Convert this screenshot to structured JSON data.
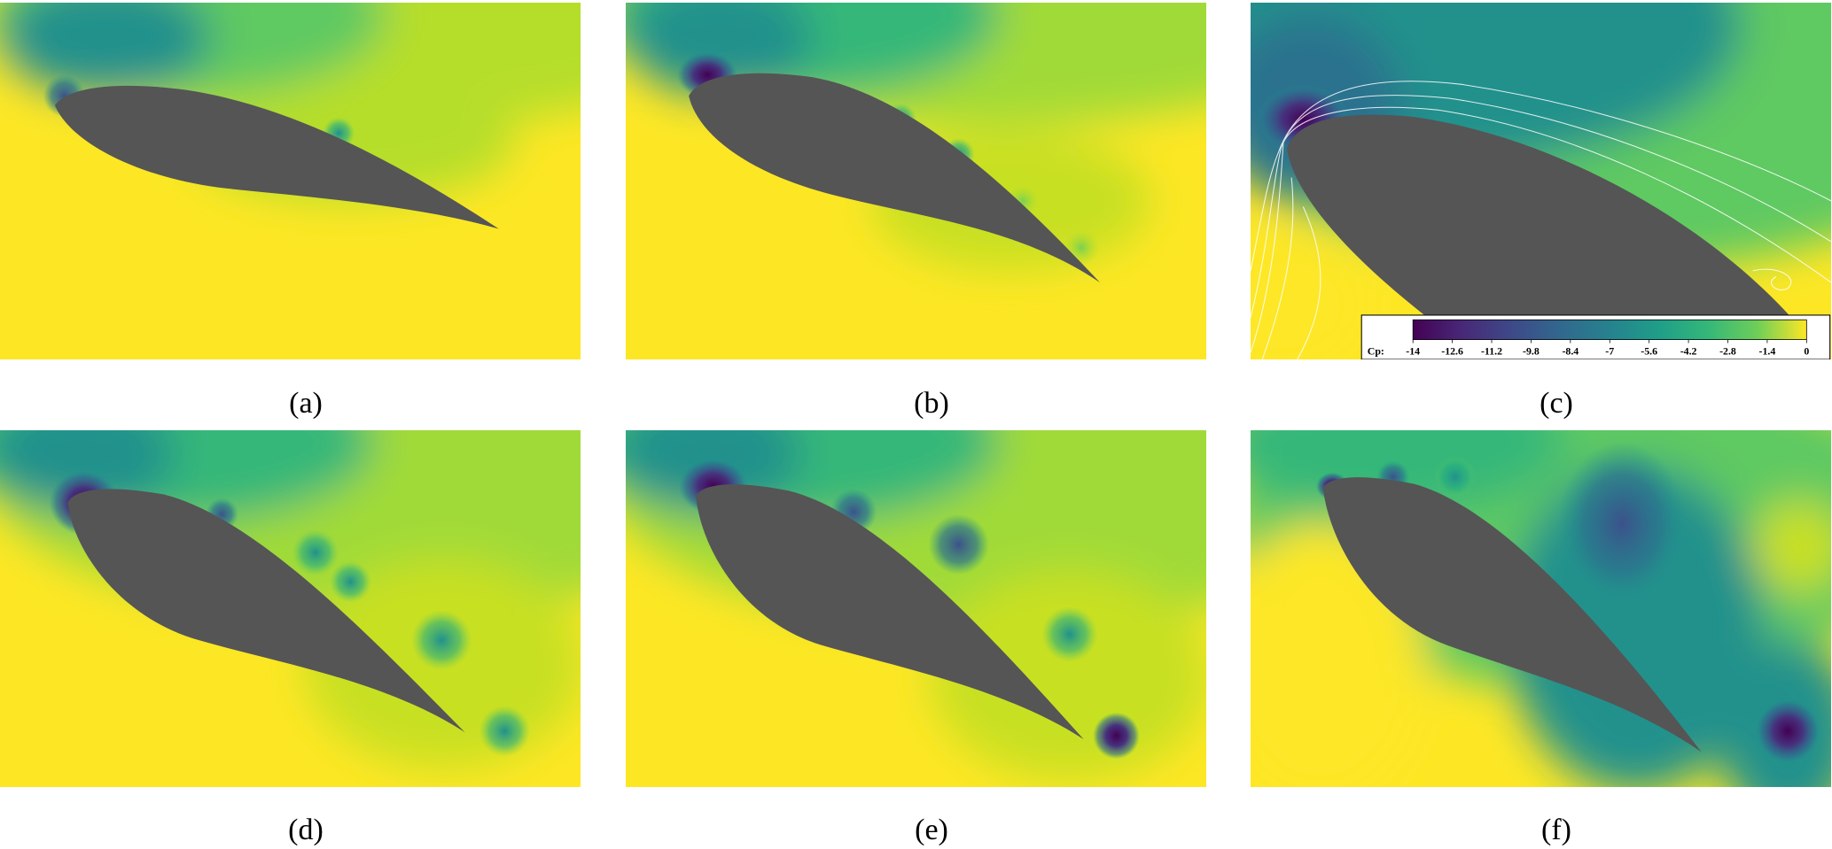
{
  "panels": [
    {
      "label": "(a)"
    },
    {
      "label": "(b)"
    },
    {
      "label": "(c)"
    },
    {
      "label": "(d)"
    },
    {
      "label": "(e)"
    },
    {
      "label": "(f)"
    }
  ],
  "colorbar": {
    "label": "Cp:",
    "lim": [
      -14,
      0
    ],
    "ticks": [
      -14,
      -12.6,
      -11.2,
      -9.8,
      -8.4,
      -7,
      -5.6,
      -4.2,
      -2.8,
      -1.4,
      0
    ]
  }
}
